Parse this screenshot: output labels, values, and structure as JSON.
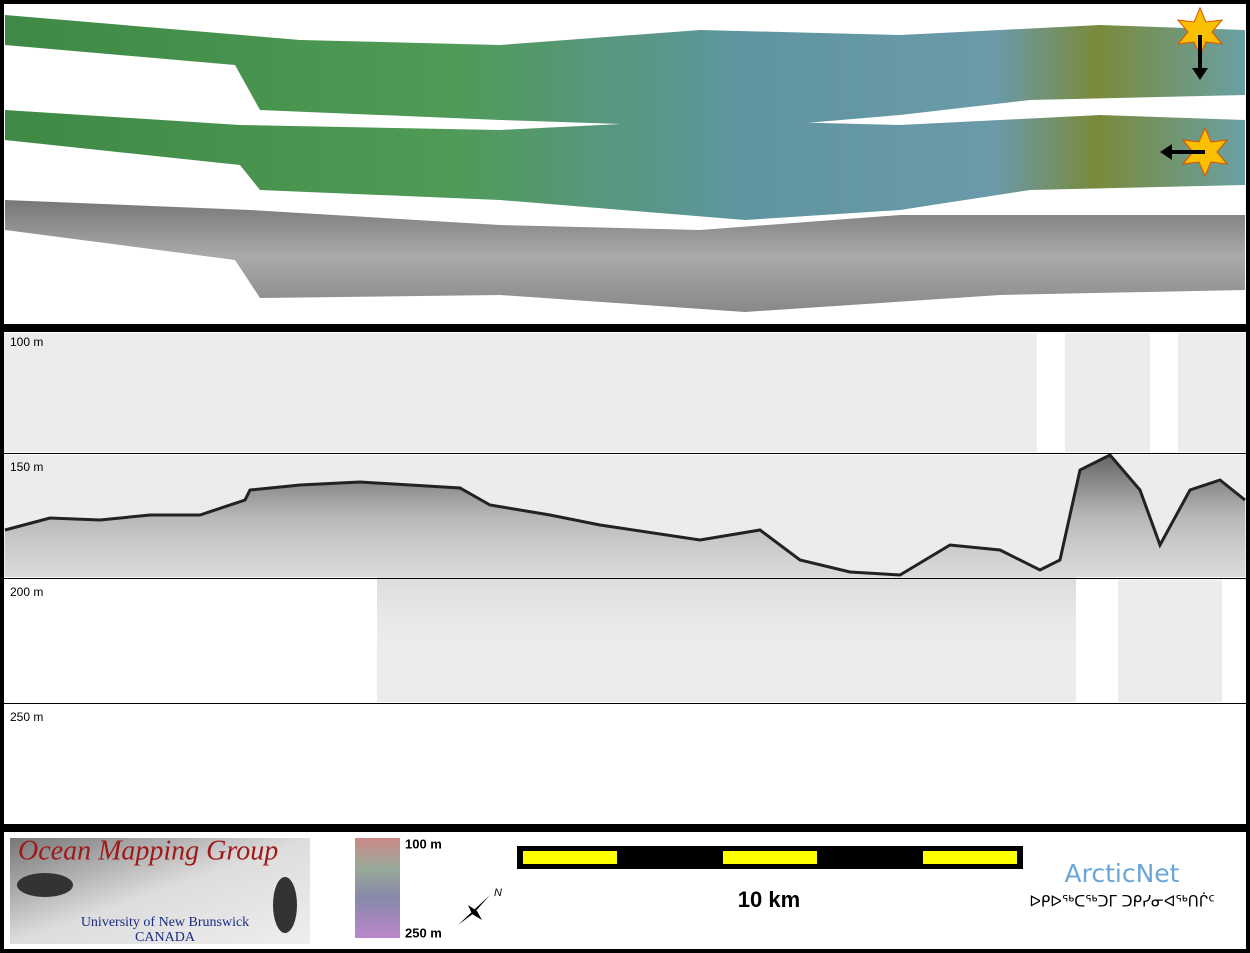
{
  "profile": {
    "depth_labels": [
      "100 m",
      "150 m",
      "200 m",
      "250 m"
    ]
  },
  "footer": {
    "logo": {
      "title": "Ocean Mapping Group",
      "subtitle": "University of New Brunswick",
      "country": "CANADA"
    },
    "colorbar": {
      "top_label": "100 m",
      "bottom_label": "250 m"
    },
    "compass": {
      "label": "N"
    },
    "scale_bar": {
      "label": "10 km"
    },
    "partner": {
      "name": "ArcticNet",
      "subtitle": "ᐅᑭᐅᖅᑕᖅᑐᒥ ᑐᑭᓯᓂᐊᖅᑎᒌᑦ"
    }
  }
}
